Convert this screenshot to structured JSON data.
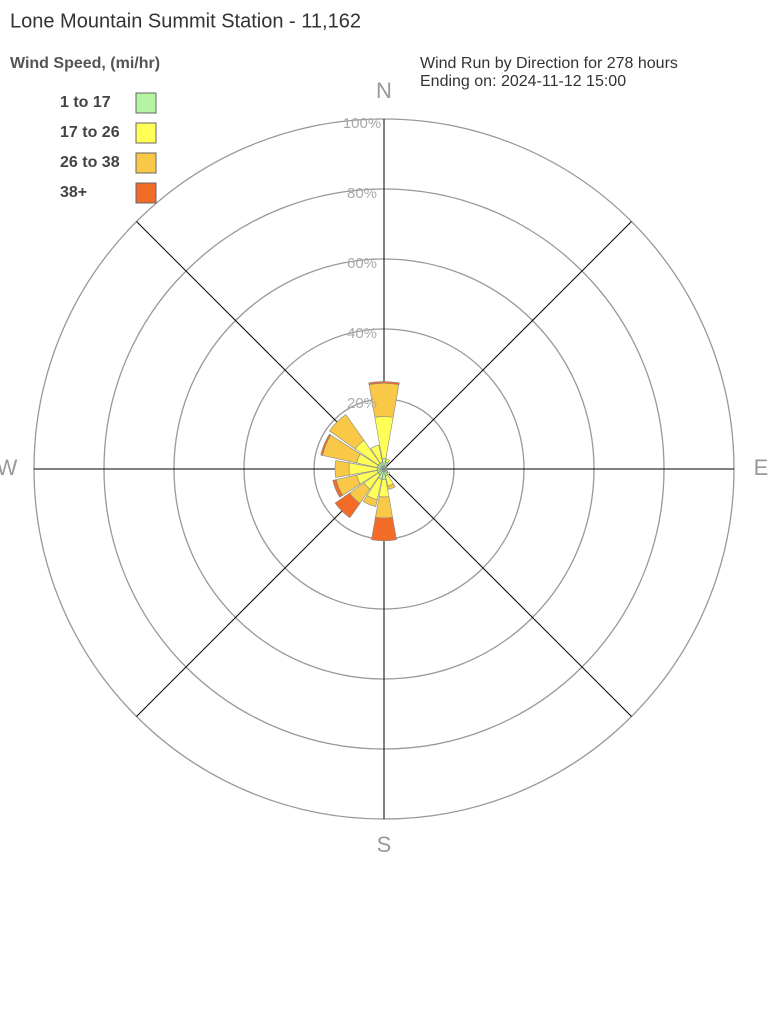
{
  "chart_data": {
    "type": "windrose",
    "title": "Lone Mountain Summit Station - 11,162",
    "legend_title": "Wind Speed, (mi/hr)",
    "subtitle": [
      "Wind Run by Direction for 278 hours",
      "Ending on: 2024-11-12 15:00"
    ],
    "categories": [
      "N",
      null,
      null,
      null,
      "E",
      null,
      null,
      null,
      "S",
      null,
      null,
      null,
      "W",
      null,
      null,
      null
    ],
    "series": [
      {
        "name": "1 to 17",
        "color": "#b3f5a0",
        "values": [
          3,
          2,
          1,
          1,
          1,
          1,
          1.5,
          2,
          3,
          3,
          2,
          2,
          2,
          2,
          2,
          2
        ]
      },
      {
        "name": "17 to 26",
        "color": "#ffff55",
        "values": [
          12,
          1,
          0,
          0,
          0,
          0,
          0.5,
          3,
          5,
          6,
          5,
          6,
          8,
          6,
          8,
          5
        ]
      },
      {
        "name": "26 to 38",
        "color": "#f9c846",
        "values": [
          9.5,
          0,
          0,
          0,
          0,
          0,
          0,
          1,
          6,
          2,
          5,
          6,
          4,
          10,
          9,
          0
        ]
      },
      {
        "name": "38+",
        "color": "#f26b27",
        "values": [
          0.5,
          0,
          0,
          0,
          0,
          0,
          0,
          0,
          6.5,
          0,
          5,
          1,
          0,
          0.5,
          0,
          0
        ]
      }
    ],
    "rlim": [
      0,
      100
    ],
    "rticks": [
      {
        "value": 20,
        "label": "20%"
      },
      {
        "value": 40,
        "label": "40%"
      },
      {
        "value": 60,
        "label": "60%"
      },
      {
        "value": 80,
        "label": "80%"
      },
      {
        "value": 100,
        "label": "100%"
      }
    ],
    "grid": true
  }
}
